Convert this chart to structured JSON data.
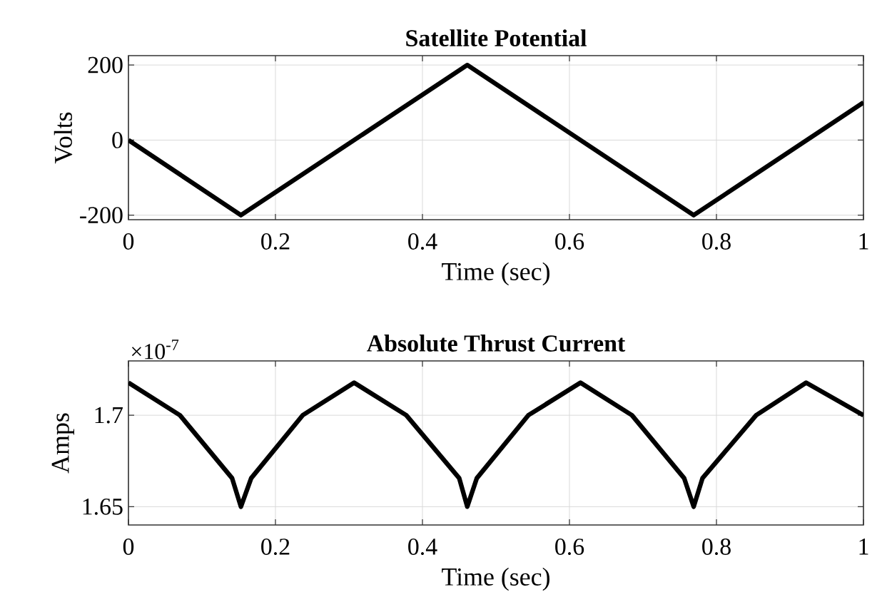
{
  "chart_data": [
    {
      "type": "line",
      "title": "Satellite Potential",
      "xlabel": "Time (sec)",
      "ylabel": "Volts",
      "x": [
        0,
        0.153,
        0.461,
        0.769,
        1.0
      ],
      "series": [
        {
          "color": "#000000",
          "values": [
            0,
            -200,
            200,
            -200,
            100
          ]
        }
      ],
      "xlim": [
        0,
        1
      ],
      "ylim": [
        -212,
        225
      ],
      "xticks": [
        0,
        0.2,
        0.4,
        0.6,
        0.8,
        1
      ],
      "yticks": [
        -200,
        0,
        200
      ],
      "grid": true
    },
    {
      "type": "line",
      "title": "Absolute Thrust Current",
      "xlabel": "Time (sec)",
      "ylabel": "Amps",
      "x": [
        0,
        0.07,
        0.141,
        0.153,
        0.167,
        0.237,
        0.307,
        0.378,
        0.45,
        0.461,
        0.474,
        0.544,
        0.615,
        0.685,
        0.756,
        0.769,
        0.781,
        0.854,
        0.922,
        1.0
      ],
      "series": [
        {
          "color": "#000000",
          "values": [
            1.7178,
            1.7,
            1.6656,
            1.65,
            1.6656,
            1.7,
            1.7178,
            1.7,
            1.6656,
            1.65,
            1.6656,
            1.7,
            1.7178,
            1.7,
            1.6656,
            1.65,
            1.6656,
            1.7,
            1.7178,
            1.7
          ]
        }
      ],
      "xlim": [
        0,
        1
      ],
      "ylim": [
        1.64,
        1.7297
      ],
      "xticks": [
        0,
        0.2,
        0.4,
        0.6,
        0.8,
        1
      ],
      "yticks": [
        1.65,
        1.7
      ],
      "grid": true,
      "annotations": [
        "×10$^{-7}$"
      ]
    }
  ]
}
